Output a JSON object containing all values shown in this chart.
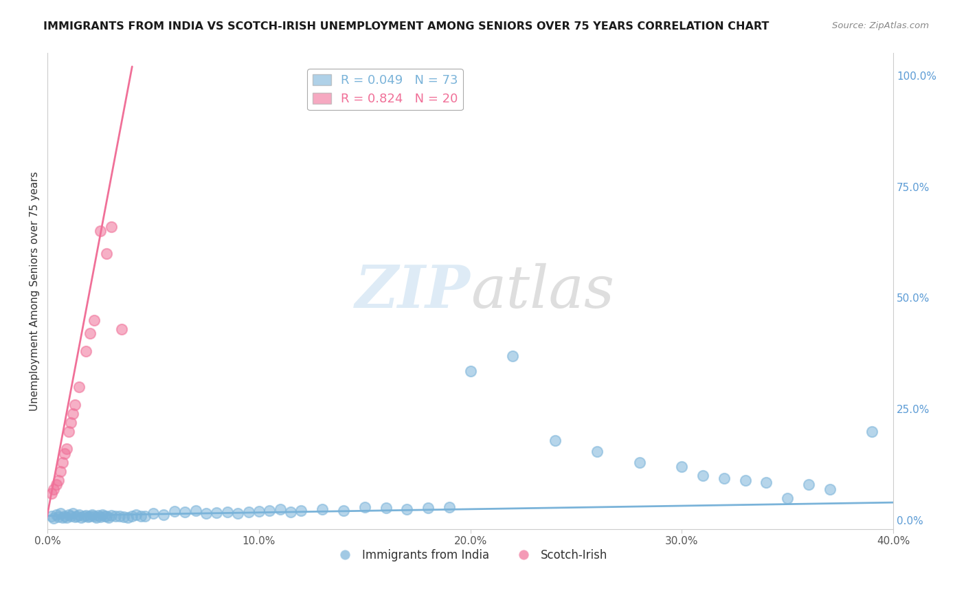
{
  "title": "IMMIGRANTS FROM INDIA VS SCOTCH-IRISH UNEMPLOYMENT AMONG SENIORS OVER 75 YEARS CORRELATION CHART",
  "source": "Source: ZipAtlas.com",
  "ylabel": "Unemployment Among Seniors over 75 years",
  "xlim": [
    0.0,
    0.4
  ],
  "ylim": [
    -0.02,
    1.05
  ],
  "right_yticks": [
    0.0,
    0.25,
    0.5,
    0.75,
    1.0
  ],
  "right_yticklabels": [
    "0.0%",
    "25.0%",
    "50.0%",
    "75.0%",
    "100.0%"
  ],
  "xticks": [
    0.0,
    0.1,
    0.2,
    0.3,
    0.4
  ],
  "xticklabels": [
    "0.0%",
    "10.0%",
    "20.0%",
    "30.0%",
    "40.0%"
  ],
  "blue_color": "#7ab3d9",
  "pink_color": "#f07098",
  "blue_R": 0.049,
  "blue_N": 73,
  "pink_R": 0.824,
  "pink_N": 20,
  "watermark_zip": "ZIP",
  "watermark_atlas": "atlas",
  "background_color": "#ffffff",
  "grid_color": "#cccccc",
  "blue_scatter_x": [
    0.002,
    0.003,
    0.004,
    0.005,
    0.006,
    0.007,
    0.008,
    0.009,
    0.01,
    0.011,
    0.012,
    0.013,
    0.014,
    0.015,
    0.016,
    0.017,
    0.018,
    0.019,
    0.02,
    0.021,
    0.022,
    0.023,
    0.024,
    0.025,
    0.026,
    0.027,
    0.028,
    0.029,
    0.03,
    0.032,
    0.034,
    0.036,
    0.038,
    0.04,
    0.042,
    0.044,
    0.046,
    0.05,
    0.055,
    0.06,
    0.065,
    0.07,
    0.075,
    0.08,
    0.085,
    0.09,
    0.095,
    0.1,
    0.105,
    0.11,
    0.115,
    0.12,
    0.13,
    0.14,
    0.15,
    0.16,
    0.17,
    0.18,
    0.19,
    0.2,
    0.22,
    0.24,
    0.26,
    0.28,
    0.3,
    0.31,
    0.32,
    0.33,
    0.34,
    0.35,
    0.36,
    0.37,
    0.39
  ],
  "blue_scatter_y": [
    0.01,
    0.005,
    0.012,
    0.008,
    0.015,
    0.007,
    0.01,
    0.006,
    0.012,
    0.009,
    0.015,
    0.008,
    0.01,
    0.012,
    0.007,
    0.009,
    0.011,
    0.008,
    0.01,
    0.013,
    0.009,
    0.007,
    0.011,
    0.008,
    0.012,
    0.01,
    0.009,
    0.007,
    0.011,
    0.01,
    0.009,
    0.008,
    0.007,
    0.01,
    0.012,
    0.009,
    0.01,
    0.015,
    0.013,
    0.02,
    0.018,
    0.022,
    0.015,
    0.017,
    0.019,
    0.015,
    0.018,
    0.02,
    0.022,
    0.025,
    0.018,
    0.022,
    0.025,
    0.022,
    0.03,
    0.028,
    0.025,
    0.028,
    0.03,
    0.335,
    0.37,
    0.18,
    0.155,
    0.13,
    0.12,
    0.1,
    0.095,
    0.09,
    0.085,
    0.05,
    0.08,
    0.07,
    0.2
  ],
  "pink_scatter_x": [
    0.002,
    0.003,
    0.004,
    0.005,
    0.006,
    0.007,
    0.008,
    0.009,
    0.01,
    0.011,
    0.012,
    0.013,
    0.015,
    0.018,
    0.02,
    0.022,
    0.025,
    0.028,
    0.03,
    0.035
  ],
  "pink_scatter_y": [
    0.06,
    0.07,
    0.08,
    0.09,
    0.11,
    0.13,
    0.15,
    0.16,
    0.2,
    0.22,
    0.24,
    0.26,
    0.3,
    0.38,
    0.42,
    0.45,
    0.65,
    0.6,
    0.66,
    0.43
  ],
  "blue_trend_x": [
    0.0,
    0.4
  ],
  "blue_trend_y": [
    0.01,
    0.04
  ],
  "pink_trend_x": [
    -0.001,
    0.04
  ],
  "pink_trend_y": [
    -0.01,
    1.02
  ]
}
